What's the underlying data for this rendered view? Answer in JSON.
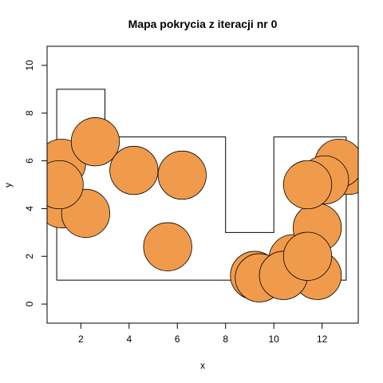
{
  "chart_data": {
    "type": "scatter",
    "title": "Mapa pokrycia z iteracji nr 0",
    "xlabel": "x",
    "ylabel": "y",
    "xlim": [
      0.6,
      13.5
    ],
    "ylim": [
      -0.8,
      10.8
    ],
    "x_ticks": [
      2,
      4,
      6,
      8,
      10,
      12
    ],
    "y_ticks": [
      0,
      2,
      4,
      6,
      8,
      10
    ],
    "grid": false,
    "boundary_polygon": [
      [
        1,
        1
      ],
      [
        13,
        1
      ],
      [
        13,
        7
      ],
      [
        10,
        7
      ],
      [
        10,
        3
      ],
      [
        8,
        3
      ],
      [
        8,
        7
      ],
      [
        3,
        7
      ],
      [
        3,
        9
      ],
      [
        1,
        9
      ],
      [
        1,
        1
      ]
    ],
    "circle_radius": 1,
    "circle_color": "#F09B4B",
    "circles": [
      {
        "x": 1.2,
        "y": 4.2
      },
      {
        "x": 2.2,
        "y": 3.8
      },
      {
        "x": 1.2,
        "y": 5.9
      },
      {
        "x": 2.6,
        "y": 6.8
      },
      {
        "x": 4.2,
        "y": 5.6
      },
      {
        "x": 6.2,
        "y": 5.4
      },
      {
        "x": 1.1,
        "y": 5.0
      },
      {
        "x": 5.6,
        "y": 2.4
      },
      {
        "x": 9.2,
        "y": 1.2
      },
      {
        "x": 9.4,
        "y": 1.1
      },
      {
        "x": 10.8,
        "y": 1.9
      },
      {
        "x": 11.8,
        "y": 1.2
      },
      {
        "x": 10.4,
        "y": 1.2
      },
      {
        "x": 11.8,
        "y": 3.2
      },
      {
        "x": 13.1,
        "y": 5.6
      },
      {
        "x": 12.7,
        "y": 5.9
      },
      {
        "x": 12.1,
        "y": 5.2
      },
      {
        "x": 11.4,
        "y": 5.0
      },
      {
        "x": 11.4,
        "y": 2.0
      }
    ]
  }
}
